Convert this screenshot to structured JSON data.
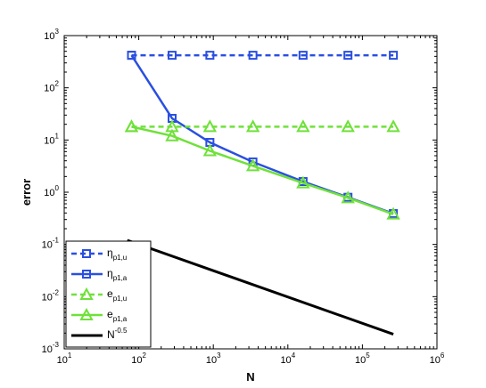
{
  "chart_data": {
    "type": "line",
    "xscale": "log",
    "yscale": "log",
    "xlim": [
      10,
      1000000
    ],
    "ylim": [
      0.001,
      1000
    ],
    "xlabel": "N",
    "ylabel": "error",
    "xticks": [
      10,
      100,
      1000,
      10000,
      100000,
      1000000
    ],
    "yticks": [
      0.001,
      0.01,
      0.1,
      1,
      10,
      100,
      1000
    ],
    "tick_base": "10",
    "xtick_exponents": [
      "1",
      "2",
      "3",
      "4",
      "5",
      "6"
    ],
    "ytick_exponents": [
      "-3",
      "-2",
      "-1",
      "0",
      "1",
      "2",
      "3"
    ],
    "grid": false,
    "legend_position": "bottom-left",
    "series": [
      {
        "name": "η_{p1,u}",
        "legend_main": "η",
        "legend_sub": "p1,u",
        "color": "#2a4fe0",
        "marker": "square",
        "dash": "dashed",
        "x": [
          80,
          280,
          900,
          3400,
          16000,
          64000,
          260000
        ],
        "y": [
          420,
          420,
          420,
          420,
          420,
          420,
          420
        ]
      },
      {
        "name": "η_{p1,a}",
        "legend_main": "η",
        "legend_sub": "p1,a",
        "color": "#2a4fe0",
        "marker": "square",
        "dash": "solid",
        "x": [
          80,
          280,
          900,
          3400,
          16000,
          64000,
          260000
        ],
        "y": [
          420,
          26,
          9,
          3.8,
          1.6,
          0.8,
          0.39
        ]
      },
      {
        "name": "e_{p1,u}",
        "legend_main": "e",
        "legend_sub": "p1,u",
        "color": "#6fe13a",
        "marker": "triangle",
        "dash": "dashed",
        "x": [
          80,
          280,
          900,
          3400,
          16000,
          64000,
          260000
        ],
        "y": [
          18,
          18,
          18,
          18,
          18,
          18,
          18
        ]
      },
      {
        "name": "e_{p1,a}",
        "legend_main": "e",
        "legend_sub": "p1,a",
        "color": "#6fe13a",
        "marker": "triangle",
        "dash": "solid",
        "x": [
          80,
          280,
          900,
          3400,
          16000,
          64000,
          260000
        ],
        "y": [
          18,
          12,
          6.2,
          3.2,
          1.5,
          0.78,
          0.38
        ]
      },
      {
        "name": "N^{-0.5}",
        "legend_main": "N",
        "legend_sup": "-0.5",
        "color": "#000000",
        "marker": "none",
        "dash": "solid",
        "x": [
          70,
          260000
        ],
        "y": [
          0.12,
          0.0019
        ]
      }
    ]
  }
}
